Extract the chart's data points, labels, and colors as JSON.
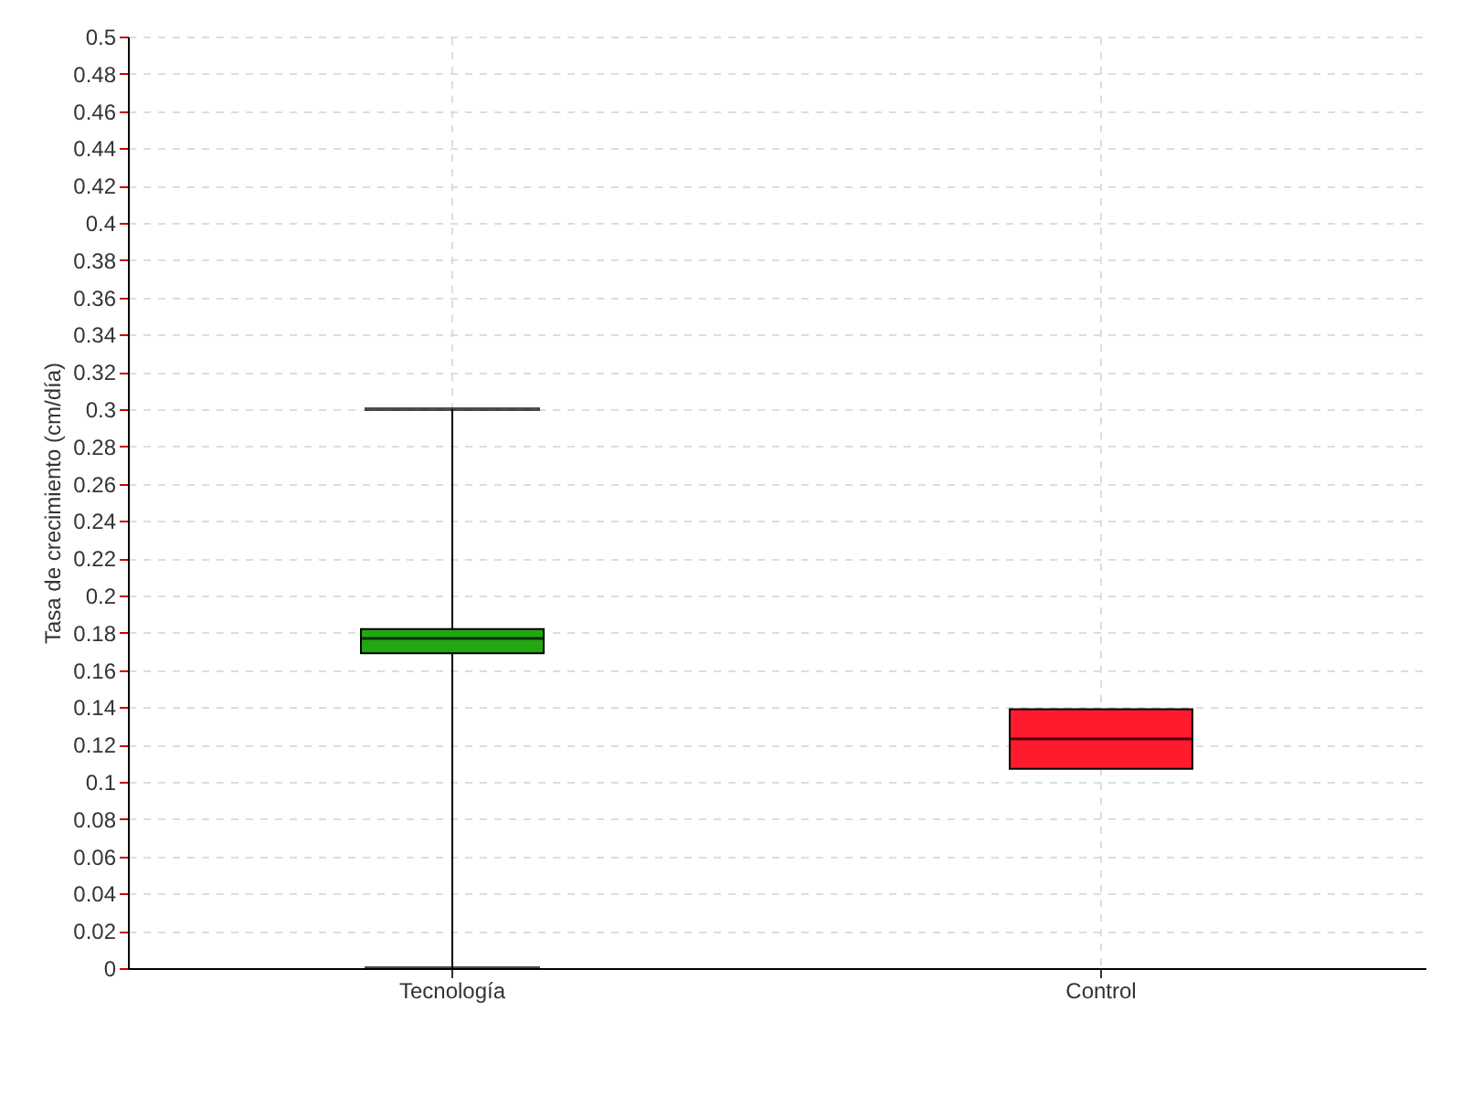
{
  "chart_data": {
    "type": "box",
    "ylabel": "Tasa de crecimiento (cm/día)",
    "categories": [
      "Tecnología",
      "Control"
    ],
    "colors": [
      "#22a612",
      "#ff1a2e"
    ],
    "boxes": [
      {
        "low": 0,
        "q1": 0.169,
        "median": 0.177,
        "q3": 0.182,
        "high": 0.3
      },
      {
        "low": 0.107,
        "q1": 0.107,
        "median": 0.123,
        "q3": 0.139,
        "high": 0.139
      }
    ],
    "ylim": [
      0,
      0.5
    ],
    "yticks": [
      0,
      0.02,
      0.04,
      0.06,
      0.08,
      0.1,
      0.12,
      0.14,
      0.16,
      0.18,
      0.2,
      0.22,
      0.24,
      0.26,
      0.28,
      0.3,
      0.32,
      0.34,
      0.36,
      0.38,
      0.4,
      0.42,
      0.44,
      0.46,
      0.48,
      0.5
    ],
    "grid": true
  }
}
